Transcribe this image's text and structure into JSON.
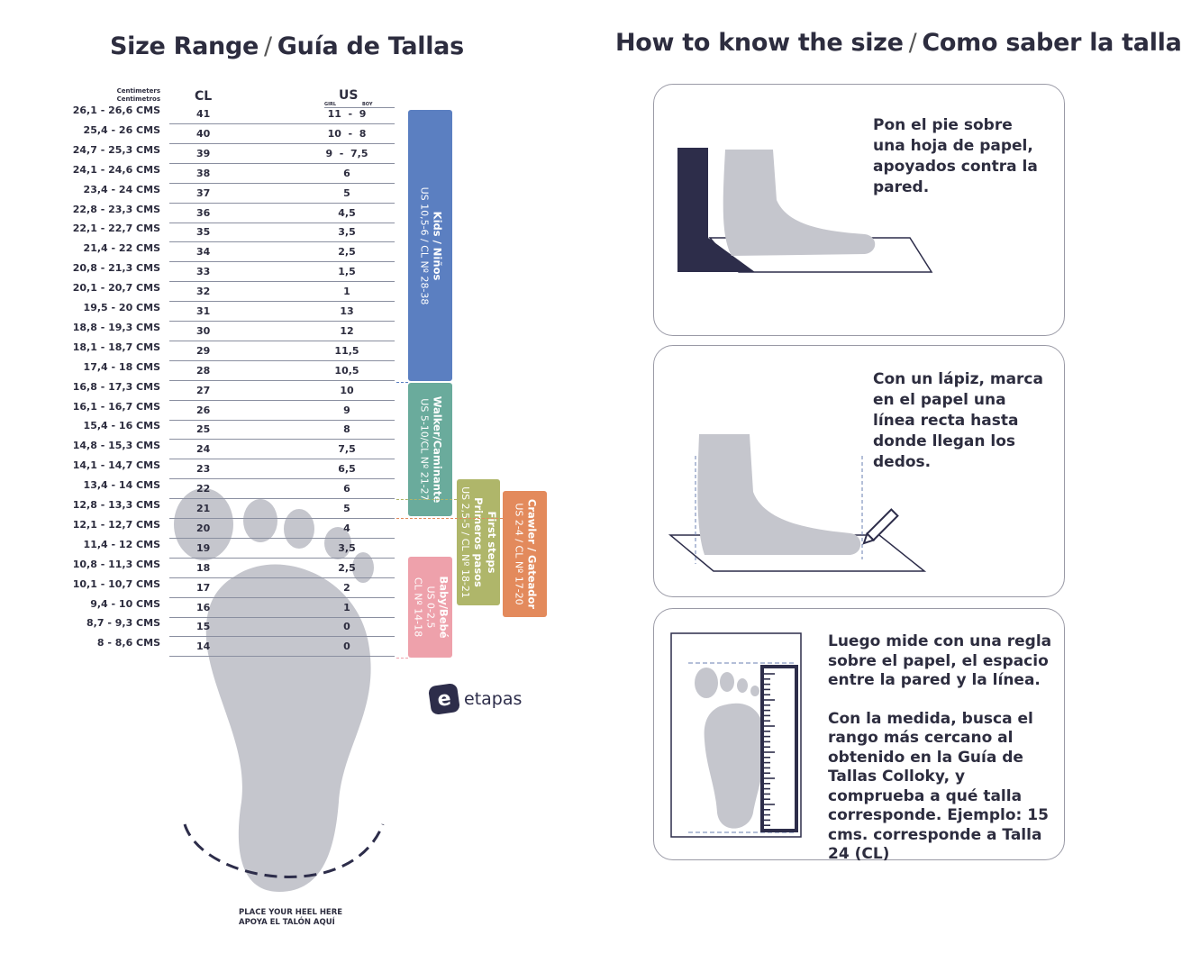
{
  "left": {
    "title_en": "Size Range",
    "title_es": "Guía de Tallas",
    "sep": "/"
  },
  "right": {
    "title_en": "How to know the size",
    "title_es": "Como saber la talla",
    "sep": "/"
  },
  "table": {
    "header_cm_en": "Centimeters",
    "header_cm_es": "Centimetros",
    "header_cl": "CL",
    "header_us": "US",
    "girl": "GIRL",
    "boy": "BOY",
    "rows": [
      {
        "cm": "26,1 - 26,6 CMS",
        "cl": "41",
        "us": "11  -  9"
      },
      {
        "cm": "25,4 - 26 CMS",
        "cl": "40",
        "us": "10  -  8"
      },
      {
        "cm": "24,7 - 25,3 CMS",
        "cl": "39",
        "us": "9  -  7,5"
      },
      {
        "cm": "24,1 - 24,6 CMS",
        "cl": "38",
        "us": "6"
      },
      {
        "cm": "23,4 - 24 CMS",
        "cl": "37",
        "us": "5"
      },
      {
        "cm": "22,8 - 23,3 CMS",
        "cl": "36",
        "us": "4,5"
      },
      {
        "cm": "22,1 - 22,7 CMS",
        "cl": "35",
        "us": "3,5"
      },
      {
        "cm": "21,4 - 22 CMS",
        "cl": "34",
        "us": "2,5"
      },
      {
        "cm": "20,8 - 21,3 CMS",
        "cl": "33",
        "us": "1,5"
      },
      {
        "cm": "20,1 - 20,7 CMS",
        "cl": "32",
        "us": "1"
      },
      {
        "cm": "19,5 - 20 CMS",
        "cl": "31",
        "us": "13"
      },
      {
        "cm": "18,8 - 19,3 CMS",
        "cl": "30",
        "us": "12"
      },
      {
        "cm": "18,1 - 18,7 CMS",
        "cl": "29",
        "us": "11,5"
      },
      {
        "cm": "17,4 - 18 CMS",
        "cl": "28",
        "us": "10,5"
      },
      {
        "cm": "16,8 - 17,3 CMS",
        "cl": "27",
        "us": "10"
      },
      {
        "cm": "16,1 - 16,7 CMS",
        "cl": "26",
        "us": "9"
      },
      {
        "cm": "15,4 - 16 CMS",
        "cl": "25",
        "us": "8"
      },
      {
        "cm": "14,8 - 15,3 CMS",
        "cl": "24",
        "us": "7,5"
      },
      {
        "cm": "14,1 - 14,7 CMS",
        "cl": "23",
        "us": "6,5"
      },
      {
        "cm": "13,4 - 14 CMS",
        "cl": "22",
        "us": "6"
      },
      {
        "cm": "12,8 - 13,3 CMS",
        "cl": "21",
        "us": "5"
      },
      {
        "cm": "12,1 - 12,7 CMS",
        "cl": "20",
        "us": "4"
      },
      {
        "cm": "11,4 - 12 CMS",
        "cl": "19",
        "us": "3,5"
      },
      {
        "cm": "10,8 - 11,3 CMS",
        "cl": "18",
        "us": "2,5"
      },
      {
        "cm": "10,1 - 10,7 CMS",
        "cl": "17",
        "us": "2"
      },
      {
        "cm": "9,4 - 10 CMS",
        "cl": "16",
        "us": "1"
      },
      {
        "cm": "8,7 - 9,3 CMS",
        "cl": "15",
        "us": "0"
      },
      {
        "cm": "8 - 8,6 CMS",
        "cl": "14",
        "us": "0"
      }
    ]
  },
  "bands": [
    {
      "name": "Kids / Niños",
      "range": "US 10,5-6 / CL Nº 28-38",
      "color": "#5b7fc1"
    },
    {
      "name": "Walker/Caminante",
      "range": "US 5-10/CL Nº 21-27",
      "color": "#6aab9c"
    },
    {
      "name": "First steps",
      "name2": "Primeros pasos",
      "range": "US 2,5-5 / CL Nº 18-21",
      "color": "#afb66a"
    },
    {
      "name": "Crawler / Gateador",
      "range": "US 2-4 / CL Nº 17-20",
      "color": "#e38a5c"
    },
    {
      "name": "Baby/Bebé",
      "range": "US 0-2,5",
      "range2": "CL Nº 14-18",
      "color": "#eea1ab"
    }
  ],
  "logo": {
    "text": "etapas"
  },
  "heel": {
    "en": "PLACE YOUR HEEL HERE",
    "es": "APOYA EL TALÓN AQUÍ"
  },
  "steps": [
    {
      "text": "Pon el pie sobre una hoja de papel, apoyados contra la pared."
    },
    {
      "text": "Con un lápiz, marca en el papel una línea recta hasta donde llegan los dedos."
    },
    {
      "text": "Luego mide con una regla sobre el papel, el espacio entre la pared y la línea.",
      "text2": "Con la medida, busca el rango más cercano al obtenido en la Guía de Tallas Colloky, y comprueba a qué talla corresponde. Ejemplo:  15 cms. corresponde a Talla 24 (CL)"
    }
  ],
  "colors": {
    "text": "#2d2d3f",
    "foot": "#c5c6cd",
    "dark": "#2d2d4a"
  }
}
